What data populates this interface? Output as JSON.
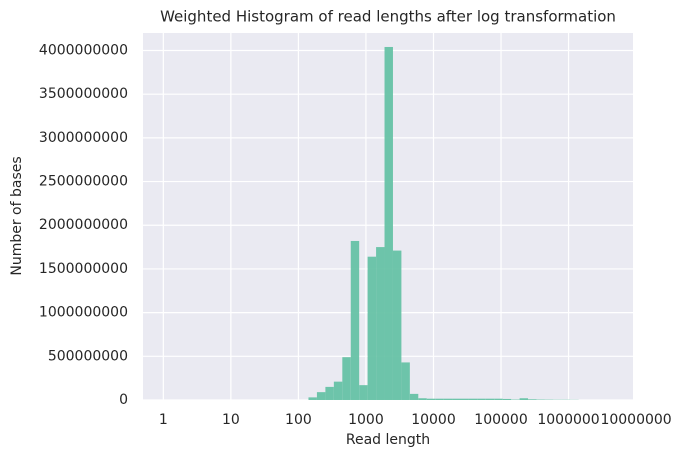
{
  "chart_data": {
    "type": "histogram",
    "title": "Weighted Histogram of read lengths after log transformation",
    "xlabel": "Read length",
    "ylabel": "Number of bases",
    "xscale": "log",
    "grid": true,
    "color": "#66c2a5",
    "bins": [
      141,
      188,
      251,
      335,
      447,
      596,
      794,
      1059,
      1413,
      1884,
      2512,
      3350,
      4467,
      5957,
      7943,
      10593,
      14125,
      18836,
      25119,
      33497,
      44668,
      59566,
      79433,
      105925,
      141254,
      188365,
      251189,
      334965,
      446684,
      595662,
      794328,
      1059254,
      1412538
    ],
    "values": [
      30000000,
      90000000,
      150000000,
      210000000,
      490000000,
      1820000000,
      170000000,
      1640000000,
      1750000000,
      4040000000,
      1710000000,
      430000000,
      70000000,
      20000000,
      15000000,
      15000000,
      15000000,
      15000000,
      15000000,
      15000000,
      15000000,
      15000000,
      15000000,
      12000000,
      5000000,
      20000000,
      8000000,
      5000000,
      4000000,
      3000000,
      3000000,
      2000000
    ],
    "xlim": [
      0.5,
      9000000
    ],
    "xticks": [
      1,
      10,
      100,
      1000,
      10000,
      100000,
      1000000,
      10000000
    ],
    "ylim": [
      0,
      4200000000
    ],
    "yticks": [
      0,
      500000000,
      1000000000,
      1500000000,
      2000000000,
      2500000000,
      3000000000,
      3500000000,
      4000000000
    ]
  }
}
